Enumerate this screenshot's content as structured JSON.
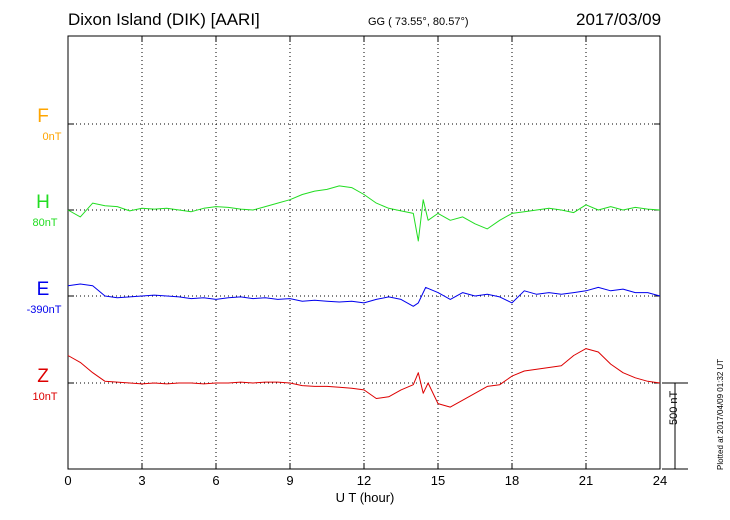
{
  "header": {
    "title": "Dixon Island (DIK)  [AARI]",
    "coords": "GG ( 73.55°,  80.57°)",
    "date": "2017/03/09"
  },
  "footer": {
    "plotted": "Plotted at 2017/04/09 01:32 UT"
  },
  "chart_data": {
    "type": "line",
    "xlabel": "U T (hour)",
    "xlim": [
      0,
      24
    ],
    "xticks": [
      "0",
      "3",
      "6",
      "9",
      "12",
      "15",
      "18",
      "21",
      "24"
    ],
    "scale_bar": "500 nT",
    "grid": true,
    "series": [
      {
        "name": "F",
        "baseline": "0nT",
        "color": "#ffa500",
        "x": [],
        "y": []
      },
      {
        "name": "H",
        "baseline": "80nT",
        "color": "#22dd22",
        "x": [
          0,
          0.5,
          1,
          1.5,
          2,
          2.5,
          3,
          3.5,
          4,
          4.5,
          5,
          5.5,
          6,
          6.5,
          7,
          7.5,
          8,
          8.5,
          9,
          9.5,
          10,
          10.5,
          11,
          11.5,
          12,
          12.5,
          13,
          13.5,
          14,
          14.2,
          14.4,
          14.6,
          15,
          15.5,
          16,
          16.5,
          17,
          17.5,
          18,
          18.5,
          19,
          19.5,
          20,
          20.5,
          21,
          21.5,
          22,
          22.5,
          23,
          23.5,
          24
        ],
        "y": [
          0,
          -40,
          40,
          25,
          20,
          -5,
          10,
          5,
          10,
          0,
          -10,
          10,
          20,
          15,
          5,
          0,
          20,
          40,
          60,
          90,
          110,
          120,
          140,
          130,
          90,
          40,
          10,
          -5,
          -20,
          -180,
          60,
          -60,
          -20,
          -60,
          -40,
          -80,
          -110,
          -60,
          -20,
          -10,
          0,
          10,
          0,
          -15,
          30,
          0,
          20,
          0,
          15,
          5,
          0
        ]
      },
      {
        "name": "E",
        "baseline": "-390nT",
        "color": "#0000ee",
        "x": [
          0,
          0.5,
          1,
          1.5,
          2,
          2.5,
          3,
          3.5,
          4,
          4.5,
          5,
          5.5,
          6,
          6.5,
          7,
          7.5,
          8,
          8.5,
          9,
          9.5,
          10,
          10.5,
          11,
          11.5,
          12,
          12.5,
          13,
          13.5,
          14,
          14.2,
          14.5,
          15,
          15.5,
          16,
          16.5,
          17,
          17.5,
          18,
          18.5,
          19,
          19.5,
          20,
          20.5,
          21,
          21.5,
          22,
          22.5,
          23,
          23.5,
          24
        ],
        "y": [
          60,
          70,
          60,
          0,
          -10,
          -5,
          0,
          5,
          0,
          -5,
          -15,
          -10,
          -20,
          -10,
          -5,
          -15,
          -10,
          -20,
          -15,
          -30,
          -25,
          -30,
          -35,
          -30,
          -40,
          -20,
          -5,
          -20,
          -60,
          -40,
          50,
          20,
          -20,
          20,
          0,
          10,
          -5,
          -40,
          30,
          10,
          20,
          10,
          20,
          30,
          50,
          30,
          40,
          20,
          20,
          0
        ]
      },
      {
        "name": "Z",
        "baseline": "10nT",
        "color": "#dd0000",
        "x": [
          0,
          0.5,
          1,
          1.5,
          2,
          2.5,
          3,
          3.5,
          4,
          4.5,
          5,
          5.5,
          6,
          6.5,
          7,
          7.5,
          8,
          8.5,
          9,
          9.5,
          10,
          10.5,
          11,
          11.5,
          12,
          12.5,
          13,
          13.5,
          14,
          14.2,
          14.4,
          14.6,
          15,
          15.5,
          16,
          16.5,
          17,
          17.5,
          18,
          18.5,
          19,
          19.5,
          20,
          20.5,
          21,
          21.5,
          22,
          22.5,
          23,
          23.5,
          24
        ],
        "y": [
          160,
          120,
          60,
          10,
          5,
          0,
          -5,
          0,
          -5,
          0,
          0,
          -5,
          0,
          0,
          5,
          0,
          5,
          5,
          0,
          -15,
          -20,
          -20,
          -25,
          -30,
          -40,
          -90,
          -80,
          -40,
          -10,
          60,
          -60,
          0,
          -120,
          -140,
          -100,
          -60,
          -20,
          -10,
          40,
          70,
          80,
          90,
          100,
          160,
          200,
          180,
          110,
          60,
          30,
          10,
          0
        ]
      }
    ]
  }
}
